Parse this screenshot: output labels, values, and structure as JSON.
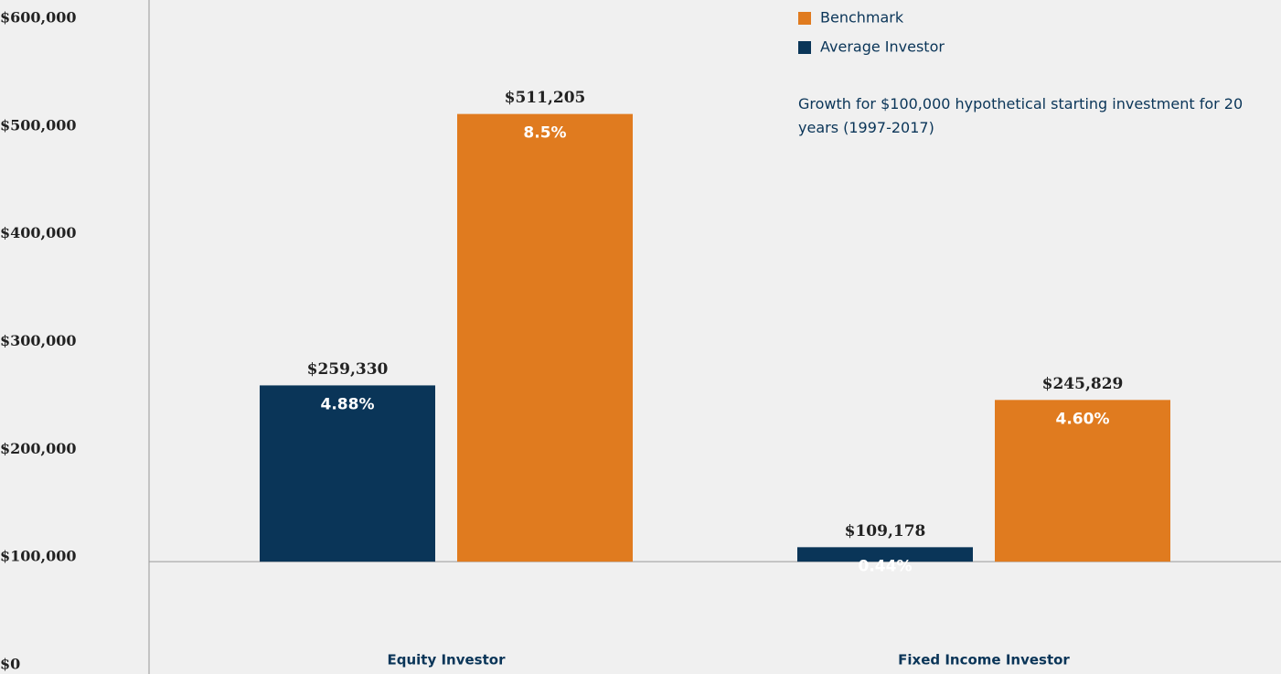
{
  "chart_data": {
    "type": "bar",
    "subtitle": "Growth for $100,000 hypothetical starting investment for 20 years (1997-2017)",
    "categories": [
      "Equity Investor",
      "Fixed Income Investor"
    ],
    "series": [
      {
        "name": "Average Investor",
        "color": "#0a3558",
        "values": [
          259330,
          109178
        ],
        "value_labels": [
          "$259,330",
          "$109,178"
        ],
        "rate_labels": [
          "4.88%",
          "0.44%"
        ]
      },
      {
        "name": "Benchmark",
        "color": "#e07b1f",
        "values": [
          511205,
          245829
        ],
        "value_labels": [
          "$511,205",
          "$245,829"
        ],
        "rate_labels": [
          "8.5%",
          "4.60%"
        ]
      }
    ],
    "ylim": [
      0,
      600000
    ],
    "yticks": [
      {
        "value": 0,
        "label": "$0"
      },
      {
        "value": 100000,
        "label": "$100,000"
      },
      {
        "value": 200000,
        "label": "$200,000"
      },
      {
        "value": 300000,
        "label": "$300,000"
      },
      {
        "value": 400000,
        "label": "$400,000"
      },
      {
        "value": 500000,
        "label": "$500,000"
      },
      {
        "value": 600000,
        "label": "$600,000"
      }
    ],
    "legend": "top-right"
  }
}
